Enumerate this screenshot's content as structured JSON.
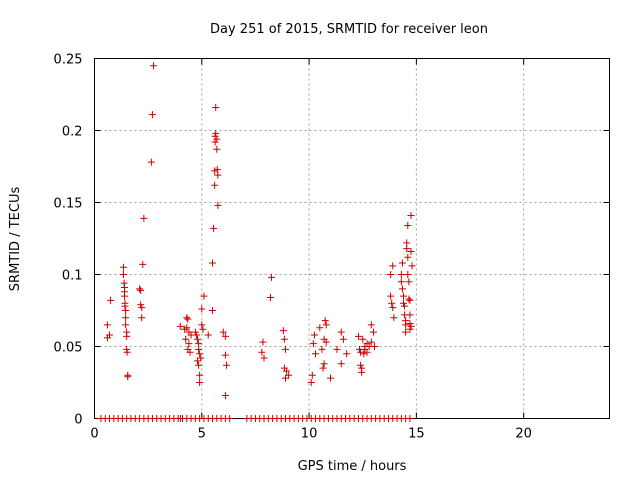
{
  "chart_data": {
    "type": "scatter",
    "title": "Day 251 of 2015, SRMTID for receiver leon",
    "xlabel": "GPS time / hours",
    "ylabel": "SRMTID / TECUs",
    "xlim": [
      0,
      24
    ],
    "ylim": [
      0,
      0.25
    ],
    "x_ticks": [
      0,
      5,
      10,
      15,
      20
    ],
    "x_tick_labels": [
      "0",
      "5",
      "10",
      "15",
      "20"
    ],
    "y_ticks": [
      0,
      0.05,
      0.1,
      0.15,
      0.2,
      0.25
    ],
    "y_tick_labels": [
      "0",
      "0.05",
      "0.1",
      "0.15",
      "0.2",
      "0.25"
    ],
    "grid": true,
    "marker": "+",
    "color": "#cc0000",
    "series": [
      {
        "name": "SRMTID",
        "points": [
          [
            0.6,
            0.065
          ],
          [
            0.6,
            0.056
          ],
          [
            0.7,
            0.058
          ],
          [
            0.75,
            0.082
          ],
          [
            1.35,
            0.105
          ],
          [
            1.35,
            0.1
          ],
          [
            1.38,
            0.094
          ],
          [
            1.4,
            0.088
          ],
          [
            1.4,
            0.085
          ],
          [
            1.42,
            0.08
          ],
          [
            1.42,
            0.078
          ],
          [
            1.45,
            0.07
          ],
          [
            1.45,
            0.065
          ],
          [
            1.5,
            0.06
          ],
          [
            1.5,
            0.057
          ],
          [
            1.5,
            0.048
          ],
          [
            1.52,
            0.046
          ],
          [
            1.55,
            0.03
          ],
          [
            1.55,
            0.029
          ],
          [
            1.4,
            0.091
          ],
          [
            1.45,
            0.075
          ],
          [
            2.1,
            0.09
          ],
          [
            2.15,
            0.089
          ],
          [
            2.15,
            0.079
          ],
          [
            2.2,
            0.077
          ],
          [
            2.2,
            0.07
          ],
          [
            2.25,
            0.107
          ],
          [
            2.3,
            0.139
          ],
          [
            2.65,
            0.178
          ],
          [
            2.7,
            0.211
          ],
          [
            2.75,
            0.245
          ],
          [
            4.0,
            0.064
          ],
          [
            4.2,
            0.062
          ],
          [
            4.25,
            0.055
          ],
          [
            4.3,
            0.07
          ],
          [
            4.35,
            0.069
          ],
          [
            4.3,
            0.063
          ],
          [
            4.4,
            0.06
          ],
          [
            4.4,
            0.052
          ],
          [
            4.35,
            0.048
          ],
          [
            4.45,
            0.046
          ],
          [
            4.5,
            0.058
          ],
          [
            4.7,
            0.06
          ],
          [
            4.75,
            0.058
          ],
          [
            4.8,
            0.055
          ],
          [
            4.85,
            0.052
          ],
          [
            4.85,
            0.048
          ],
          [
            4.9,
            0.045
          ],
          [
            4.8,
            0.04
          ],
          [
            4.85,
            0.037
          ],
          [
            4.9,
            0.03
          ],
          [
            4.9,
            0.025
          ],
          [
            4.95,
            0.042
          ],
          [
            5.0,
            0.065
          ],
          [
            5.0,
            0.076
          ],
          [
            5.05,
            0.062
          ],
          [
            5.1,
            0.085
          ],
          [
            5.3,
            0.058
          ],
          [
            5.5,
            0.075
          ],
          [
            5.5,
            0.108
          ],
          [
            5.55,
            0.132
          ],
          [
            5.6,
            0.162
          ],
          [
            5.6,
            0.172
          ],
          [
            5.62,
            0.196
          ],
          [
            5.62,
            0.192
          ],
          [
            5.65,
            0.198
          ],
          [
            5.65,
            0.216
          ],
          [
            5.7,
            0.187
          ],
          [
            5.7,
            0.194
          ],
          [
            5.72,
            0.173
          ],
          [
            5.75,
            0.169
          ],
          [
            5.75,
            0.148
          ],
          [
            6.0,
            0.06
          ],
          [
            6.1,
            0.057
          ],
          [
            6.1,
            0.044
          ],
          [
            6.15,
            0.037
          ],
          [
            6.1,
            0.016
          ],
          [
            7.8,
            0.046
          ],
          [
            7.85,
            0.053
          ],
          [
            7.9,
            0.042
          ],
          [
            8.2,
            0.084
          ],
          [
            8.25,
            0.098
          ],
          [
            8.8,
            0.061
          ],
          [
            8.85,
            0.055
          ],
          [
            8.9,
            0.048
          ],
          [
            8.85,
            0.035
          ],
          [
            8.9,
            0.028
          ],
          [
            8.95,
            0.033
          ],
          [
            9.05,
            0.03
          ],
          [
            10.1,
            0.025
          ],
          [
            10.15,
            0.03
          ],
          [
            10.2,
            0.052
          ],
          [
            10.25,
            0.058
          ],
          [
            10.3,
            0.045
          ],
          [
            10.5,
            0.063
          ],
          [
            10.6,
            0.048
          ],
          [
            10.65,
            0.035
          ],
          [
            10.7,
            0.038
          ],
          [
            10.7,
            0.055
          ],
          [
            10.75,
            0.068
          ],
          [
            10.8,
            0.053
          ],
          [
            10.8,
            0.065
          ],
          [
            11.0,
            0.028
          ],
          [
            11.3,
            0.048
          ],
          [
            11.5,
            0.06
          ],
          [
            11.6,
            0.055
          ],
          [
            11.5,
            0.038
          ],
          [
            11.75,
            0.045
          ],
          [
            12.3,
            0.057
          ],
          [
            12.35,
            0.048
          ],
          [
            12.4,
            0.046
          ],
          [
            12.4,
            0.037
          ],
          [
            12.45,
            0.035
          ],
          [
            12.45,
            0.032
          ],
          [
            12.5,
            0.055
          ],
          [
            12.55,
            0.045
          ],
          [
            12.6,
            0.05
          ],
          [
            12.6,
            0.048
          ],
          [
            12.7,
            0.052
          ],
          [
            12.7,
            0.046
          ],
          [
            12.8,
            0.05
          ],
          [
            12.9,
            0.065
          ],
          [
            12.9,
            0.053
          ],
          [
            13.0,
            0.06
          ],
          [
            13.05,
            0.05
          ],
          [
            13.8,
            0.1
          ],
          [
            13.8,
            0.085
          ],
          [
            13.85,
            0.08
          ],
          [
            13.9,
            0.077
          ],
          [
            13.95,
            0.07
          ],
          [
            13.9,
            0.106
          ],
          [
            14.3,
            0.1
          ],
          [
            14.3,
            0.095
          ],
          [
            14.35,
            0.09
          ],
          [
            14.35,
            0.108
          ],
          [
            14.4,
            0.085
          ],
          [
            14.4,
            0.08
          ],
          [
            14.45,
            0.078
          ],
          [
            14.45,
            0.072
          ],
          [
            14.5,
            0.068
          ],
          [
            14.5,
            0.065
          ],
          [
            14.5,
            0.06
          ],
          [
            14.55,
            0.122
          ],
          [
            14.55,
            0.118
          ],
          [
            14.6,
            0.112
          ],
          [
            14.6,
            0.134
          ],
          [
            14.6,
            0.1
          ],
          [
            14.65,
            0.095
          ],
          [
            14.65,
            0.083
          ],
          [
            14.7,
            0.082
          ],
          [
            14.7,
            0.072
          ],
          [
            14.7,
            0.066
          ],
          [
            14.7,
            0.062
          ],
          [
            14.75,
            0.064
          ],
          [
            14.75,
            0.116
          ],
          [
            14.75,
            0.141
          ],
          [
            14.8,
            0.106
          ]
        ],
        "zero_points_x": [
          0.3,
          0.5,
          0.7,
          0.9,
          1.1,
          1.3,
          1.5,
          1.7,
          1.9,
          2.1,
          2.3,
          2.5,
          2.7,
          2.9,
          3.1,
          3.3,
          3.5,
          3.7,
          3.9,
          4.0,
          4.1,
          4.3,
          4.5,
          4.7,
          4.9,
          5.1,
          5.3,
          5.5,
          5.7,
          5.9,
          6.1,
          6.3,
          7.1,
          7.3,
          7.5,
          7.7,
          7.9,
          8.1,
          8.3,
          8.5,
          8.7,
          8.9,
          9.1,
          9.3,
          9.5,
          9.7,
          9.9,
          10.1,
          10.3,
          10.5,
          10.7,
          10.9,
          11.1,
          11.3,
          11.5,
          11.7,
          11.9,
          12.1,
          12.3,
          12.5,
          12.7,
          12.9,
          13.1,
          13.3,
          13.5,
          13.7,
          13.9,
          14.1,
          14.3,
          14.5,
          14.7
        ]
      }
    ]
  }
}
